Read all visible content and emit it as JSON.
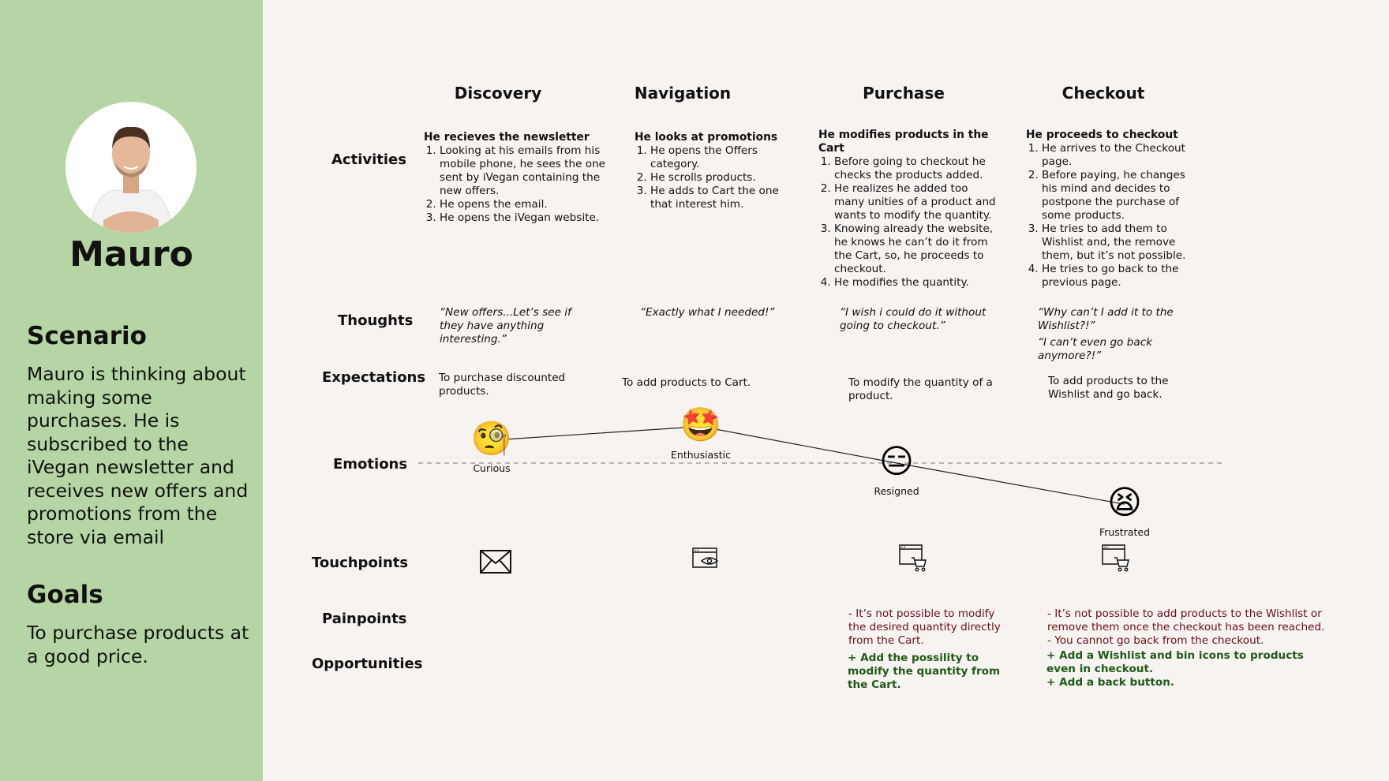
{
  "persona": {
    "name": "Mauro",
    "scenario_title": "Scenario",
    "scenario_text": "Mauro is thinking about making some purchases. He is subscribed to the iVegan newsletter and receives new offers and promotions from the store via email",
    "goals_title": "Goals",
    "goals_text": "To purchase products at a good price."
  },
  "stages": [
    "Discovery",
    "Navigation",
    "Purchase",
    "Checkout"
  ],
  "rows": {
    "activities": "Activities",
    "thoughts": "Thoughts",
    "expectations": "Expectations",
    "emotions": "Emotions",
    "touchpoints": "Touchpoints",
    "painpoints": "Painpoints",
    "opportunities": "Opportunities"
  },
  "activities": [
    {
      "title": "He recieves the newsletter",
      "steps": [
        "Looking at his emails from his mobile phone, he sees the one sent by iVegan containing the new offers.",
        "He opens the email.",
        "He opens the iVegan website."
      ]
    },
    {
      "title": "He looks at promotions",
      "steps": [
        "He opens the Offers category.",
        "He scrolls products.",
        "He adds to Cart the one that interest him."
      ]
    },
    {
      "title": "He modifies products in the Cart",
      "steps": [
        "Before going to checkout he checks the products added.",
        "He realizes he added too many unities of a product and wants to modify the quantity.",
        "Knowing already the website, he knows he can’t do it from the Cart, so, he proceeds to checkout.",
        "He modifies the quantity."
      ]
    },
    {
      "title": "He proceeds to checkout",
      "steps": [
        "He arrives to the Checkout page.",
        "Before paying, he changes his mind and decides to postpone the purchase of some products.",
        "He tries to add them to Wishlist and, the remove them, but it’s not possible.",
        "He tries to go back to the previous page."
      ]
    }
  ],
  "thoughts": [
    "“New offers...Let’s see if they have anything interesting.”",
    "“Exactly what I needed!”",
    "“I wish i could do it without going to checkout.”",
    "“Why can’t I add it to the Wishlist?!”",
    "“I can’t even go back anymore?!”"
  ],
  "expectations": [
    "To purchase discounted products.",
    "To add products to Cart.",
    "To modify the quantity of a product.",
    "To add products to the Wishlist and go back."
  ],
  "emotions": [
    {
      "label": "Curious",
      "emoji": "🧐",
      "level": 0.5
    },
    {
      "label": "Enthusiastic",
      "emoji": "🤩",
      "level": 0.8
    },
    {
      "label": "Resigned",
      "emoji": "😑",
      "level": 0.0
    },
    {
      "label": "Frustrated",
      "emoji": "😫",
      "level": -0.9
    }
  ],
  "touchpoints": [
    "envelope-icon",
    "browser-eye-icon",
    "browser-cart-icon",
    "browser-cart-icon"
  ],
  "painpoints": {
    "purchase": "- It’s not possible to modify the desired quantity directly from the Cart.",
    "checkout_1": "- It’s not possible to add products to the Wishlist or remove them once the checkout has been reached.",
    "checkout_2": "- You cannot go back from the checkout."
  },
  "opportunities": {
    "purchase": "+  Add the possility to modify the quantity from the Cart.",
    "checkout_1": "+  Add a Wishlist and bin icons to products even in checkout.",
    "checkout_2": "+ Add a back button."
  }
}
